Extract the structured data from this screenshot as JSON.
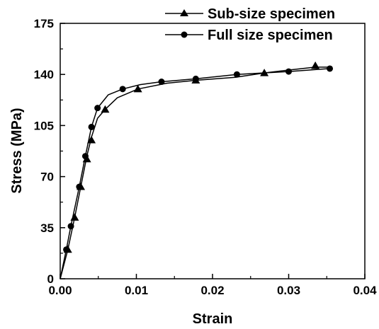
{
  "chart_data": {
    "type": "line",
    "title": "",
    "xlabel": "Strain",
    "ylabel": "Stress (MPa)",
    "xlim": [
      0,
      0.04
    ],
    "ylim": [
      0,
      175
    ],
    "x_ticks": [
      0,
      0.01,
      0.02,
      0.03,
      0.04
    ],
    "x_tick_labels": [
      "0.00",
      "0.01",
      "0.02",
      "0.03",
      "0.04"
    ],
    "y_ticks": [
      0,
      35,
      70,
      105,
      140,
      175
    ],
    "y_tick_labels": [
      "0",
      "35",
      "70",
      "105",
      "140",
      "175"
    ],
    "grid": false,
    "legend_position": "top-right",
    "series": [
      {
        "name": "Sub-size specimen",
        "marker": "triangle",
        "color": "#000000",
        "curve": [
          [
            0,
            0
          ],
          [
            0.001,
            20
          ],
          [
            0.0019,
            42
          ],
          [
            0.0027,
            63
          ],
          [
            0.0035,
            84
          ],
          [
            0.0041,
            97
          ],
          [
            0.0049,
            110
          ],
          [
            0.0059,
            116
          ],
          [
            0.0075,
            124
          ],
          [
            0.0102,
            130
          ],
          [
            0.014,
            134
          ],
          [
            0.0178,
            136
          ],
          [
            0.023,
            138
          ],
          [
            0.0268,
            141
          ],
          [
            0.03,
            143
          ],
          [
            0.0335,
            145
          ],
          [
            0.0352,
            145
          ]
        ],
        "markers": [
          [
            0.001,
            20
          ],
          [
            0.0019,
            42
          ],
          [
            0.0027,
            63
          ],
          [
            0.0035,
            82
          ],
          [
            0.0041,
            95
          ],
          [
            0.0059,
            116
          ],
          [
            0.0102,
            130
          ],
          [
            0.0178,
            136
          ],
          [
            0.0268,
            141
          ],
          [
            0.0335,
            146
          ]
        ]
      },
      {
        "name": "Full size specimen",
        "marker": "circle",
        "color": "#000000",
        "curve": [
          [
            0,
            0
          ],
          [
            0.0008,
            20
          ],
          [
            0.0014,
            36
          ],
          [
            0.0025,
            63
          ],
          [
            0.0033,
            84
          ],
          [
            0.0041,
            104
          ],
          [
            0.0049,
            117
          ],
          [
            0.0063,
            126
          ],
          [
            0.0082,
            130
          ],
          [
            0.0105,
            133
          ],
          [
            0.0133,
            135
          ],
          [
            0.0178,
            137
          ],
          [
            0.0232,
            140
          ],
          [
            0.03,
            142
          ],
          [
            0.0354,
            144
          ]
        ],
        "markers": [
          [
            0.0008,
            20
          ],
          [
            0.0014,
            36
          ],
          [
            0.0025,
            63
          ],
          [
            0.0033,
            84
          ],
          [
            0.0041,
            104
          ],
          [
            0.0049,
            117
          ],
          [
            0.0082,
            130
          ],
          [
            0.0133,
            135
          ],
          [
            0.0178,
            137
          ],
          [
            0.0232,
            140
          ],
          [
            0.03,
            142
          ],
          [
            0.0354,
            144
          ]
        ]
      }
    ]
  }
}
